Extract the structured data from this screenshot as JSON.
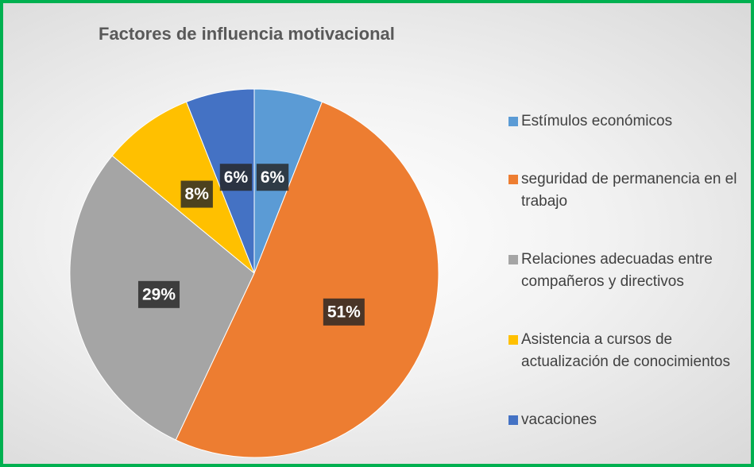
{
  "chart_data": {
    "type": "pie",
    "title": "Factores de influencia motivacional",
    "categories": [
      "Estímulos económicos",
      "seguridad de permanencia en el trabajo",
      "Relaciones adecuadas entre compañeros y directivos",
      "Asistencia a cursos de actualización de conocimientos",
      "vacaciones"
    ],
    "values": [
      6,
      51,
      29,
      8,
      6
    ],
    "value_labels": [
      "6%",
      "51%",
      "29%",
      "8%",
      "6%"
    ],
    "colors": [
      "#5b9bd5",
      "#ed7d31",
      "#a5a5a5",
      "#ffc000",
      "#4472c4"
    ],
    "legend": "right"
  }
}
